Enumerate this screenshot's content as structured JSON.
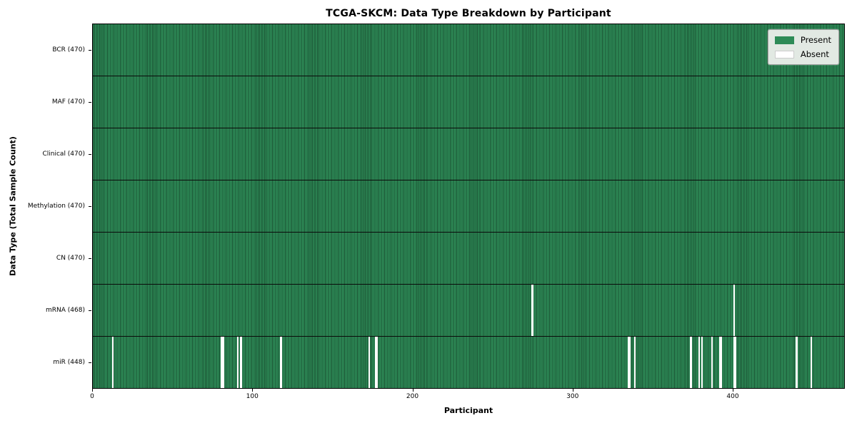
{
  "chart_data": {
    "type": "heatmap",
    "title": "TCGA-SKCM: Data Type Breakdown by Participant",
    "xlabel": "Participant",
    "ylabel": "Data Type (Total Sample Count)",
    "x_ticks": [
      0,
      100,
      200,
      300,
      400
    ],
    "x_range": [
      0,
      470
    ],
    "total_participants": 470,
    "legend": [
      {
        "label": "Present",
        "color": "#2e8b57"
      },
      {
        "label": "Absent",
        "color": "#ffffff"
      }
    ],
    "rows": [
      {
        "data_type": "BCR",
        "label": "BCR (470)",
        "present_count": 470,
        "absent_participants": []
      },
      {
        "data_type": "MAF",
        "label": "MAF (470)",
        "present_count": 470,
        "absent_participants": []
      },
      {
        "data_type": "Clinical",
        "label": "Clinical (470)",
        "present_count": 470,
        "absent_participants": []
      },
      {
        "data_type": "Methylation",
        "label": "Methylation (470)",
        "present_count": 470,
        "absent_participants": []
      },
      {
        "data_type": "CN",
        "label": "CN (470)",
        "present_count": 470,
        "absent_participants": []
      },
      {
        "data_type": "mRNA",
        "label": "mRNA (468)",
        "present_count": 468,
        "absent_participants": [
          274,
          400
        ]
      },
      {
        "data_type": "miR",
        "label": "miR (448)",
        "present_count": 448,
        "absent_participants": [
          12,
          80,
          81,
          90,
          92,
          117,
          172,
          176,
          177,
          334,
          335,
          338,
          373,
          378,
          380,
          386,
          391,
          392,
          400,
          401,
          439,
          448
        ]
      }
    ],
    "colors": {
      "present": "#2e8b57",
      "absent": "#ffffff",
      "cell_edge": "#1b5434",
      "plot_border": "#000000",
      "legend_background": "#e2e9e3",
      "legend_border": "#a3a3a3",
      "text": "#000000"
    }
  }
}
